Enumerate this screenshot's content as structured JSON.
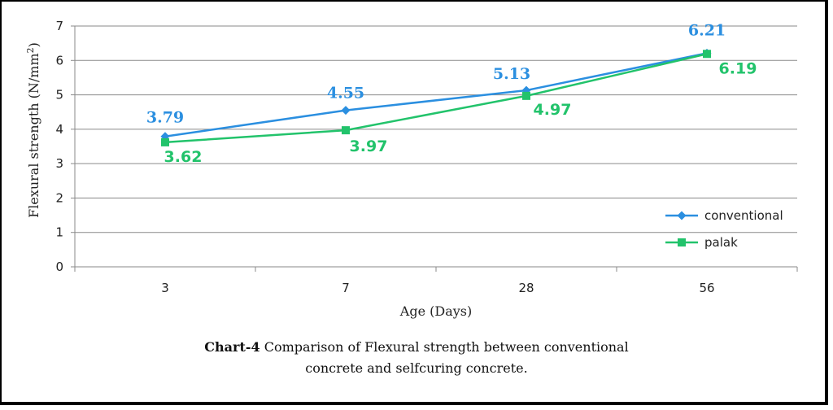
{
  "chart_data": {
    "type": "line",
    "title": "",
    "xlabel": "Age (Days)",
    "ylabel_main": "Flexural strength (N/mm",
    "ylabel_sup": "2",
    "ylabel_end": ")",
    "categories": [
      "3",
      "7",
      "28",
      "56"
    ],
    "ylim": [
      0,
      7
    ],
    "yticks": [
      "0",
      "1",
      "2",
      "3",
      "4",
      "5",
      "6",
      "7"
    ],
    "grid": true,
    "legend_position": "bottom-right",
    "series": [
      {
        "name": "conventional",
        "marker": "diamond",
        "color": "#2b8fe0",
        "values": [
          3.79,
          4.55,
          5.13,
          6.21
        ],
        "labels": [
          "3.79",
          "4.55",
          "5.13",
          "6.21"
        ]
      },
      {
        "name": "palak",
        "marker": "square",
        "color": "#22c36b",
        "values": [
          3.62,
          3.97,
          4.97,
          6.19
        ],
        "labels": [
          "3.62",
          "3.97",
          "4.97",
          "6.19"
        ]
      }
    ]
  },
  "caption": {
    "bold": "Chart-4",
    "line1": " Comparison of Flexural strength between conventional",
    "line2": "concrete and selfcuring concrete."
  }
}
